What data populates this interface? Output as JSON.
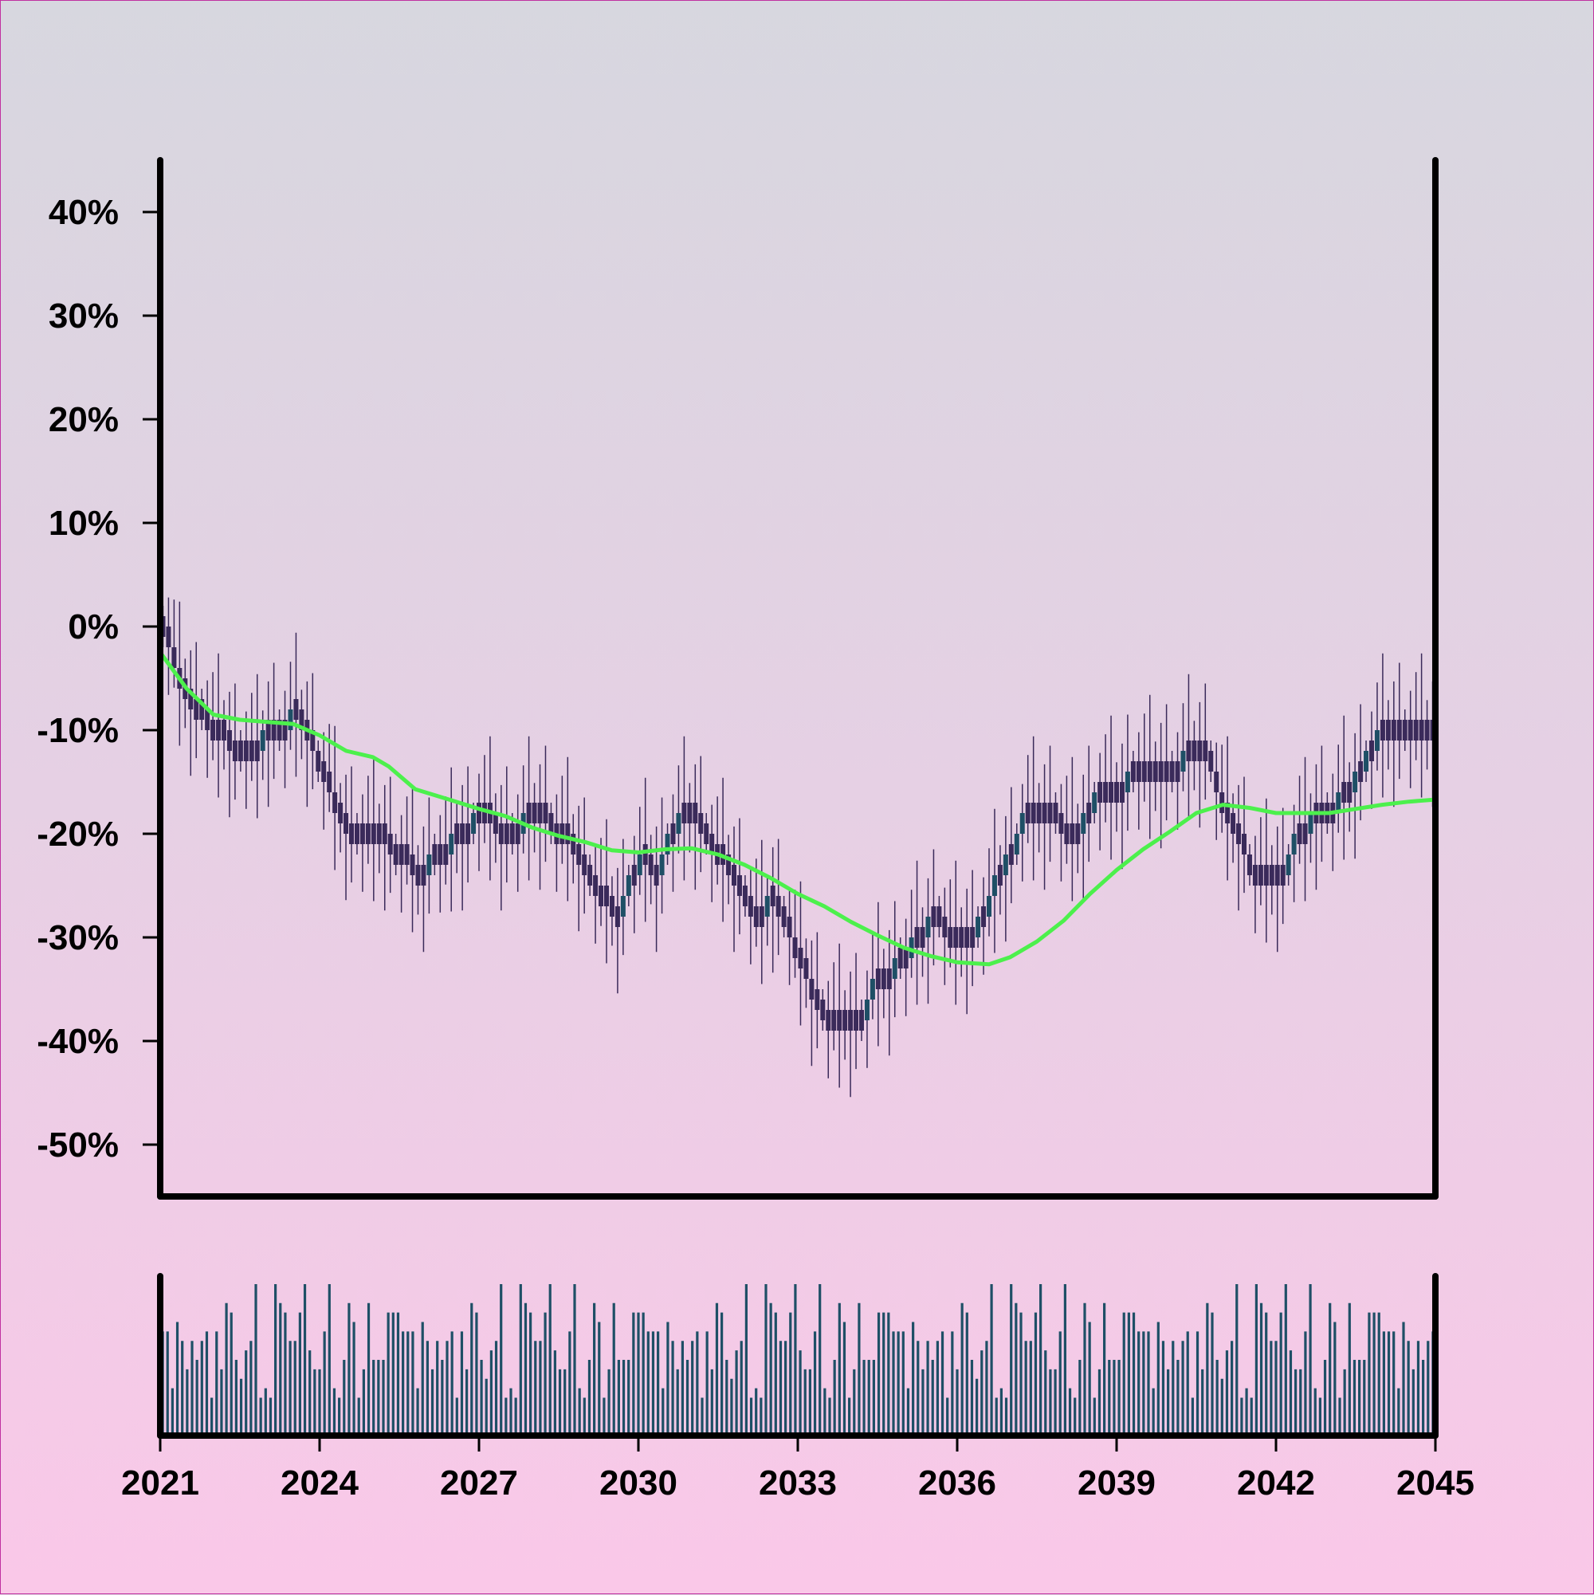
{
  "chart_data": {
    "type": "candlestick",
    "title": "",
    "xlabel": "",
    "ylabel": "",
    "x_ticks": [
      "2021",
      "2024",
      "2027",
      "2030",
      "2033",
      "2036",
      "2039",
      "2042",
      "2045"
    ],
    "x_range": [
      2021,
      2045
    ],
    "y_ticks": [
      "40%",
      "30%",
      "20%",
      "10%",
      "0%",
      "-10%",
      "-20%",
      "-30%",
      "-40%",
      "-50%"
    ],
    "y_tick_values": [
      40,
      30,
      20,
      10,
      0,
      -10,
      -20,
      -30,
      -40,
      -50
    ],
    "ylim": [
      -55,
      45
    ],
    "grid": false,
    "price_path_control": [
      [
        2021.0,
        0
      ],
      [
        2021.3,
        -5
      ],
      [
        2021.7,
        -8
      ],
      [
        2022.0,
        -10
      ],
      [
        2022.4,
        -12
      ],
      [
        2022.6,
        -13
      ],
      [
        2023.0,
        -10
      ],
      [
        2023.3,
        -10
      ],
      [
        2023.5,
        -7
      ],
      [
        2023.8,
        -11
      ],
      [
        2024.2,
        -16
      ],
      [
        2024.5,
        -20
      ],
      [
        2025.0,
        -20
      ],
      [
        2025.5,
        -22
      ],
      [
        2025.8,
        -24
      ],
      [
        2026.2,
        -22
      ],
      [
        2026.7,
        -20
      ],
      [
        2027.0,
        -18
      ],
      [
        2027.5,
        -20
      ],
      [
        2028.0,
        -18
      ],
      [
        2028.6,
        -20
      ],
      [
        2029.1,
        -25
      ],
      [
        2029.6,
        -28
      ],
      [
        2030.0,
        -22
      ],
      [
        2030.3,
        -24
      ],
      [
        2030.6,
        -20
      ],
      [
        2030.8,
        -17
      ],
      [
        2031.1,
        -19
      ],
      [
        2031.5,
        -22
      ],
      [
        2031.9,
        -25
      ],
      [
        2032.2,
        -29
      ],
      [
        2032.5,
        -26
      ],
      [
        2032.9,
        -31
      ],
      [
        2033.3,
        -36
      ],
      [
        2033.7,
        -39
      ],
      [
        2034.1,
        -39
      ],
      [
        2034.4,
        -35
      ],
      [
        2034.9,
        -32
      ],
      [
        2035.2,
        -30
      ],
      [
        2035.6,
        -28
      ],
      [
        2035.9,
        -30
      ],
      [
        2036.3,
        -29
      ],
      [
        2036.8,
        -24
      ],
      [
        2037.2,
        -19
      ],
      [
        2037.7,
        -18
      ],
      [
        2038.2,
        -20
      ],
      [
        2038.7,
        -16
      ],
      [
        2039.2,
        -15
      ],
      [
        2039.6,
        -15
      ],
      [
        2040.0,
        -14
      ],
      [
        2040.4,
        -12
      ],
      [
        2040.7,
        -13
      ],
      [
        2041.0,
        -18
      ],
      [
        2041.5,
        -23
      ],
      [
        2042.0,
        -25
      ],
      [
        2042.4,
        -20
      ],
      [
        2042.9,
        -18
      ],
      [
        2043.3,
        -16
      ],
      [
        2043.7,
        -12
      ],
      [
        2044.0,
        -10
      ],
      [
        2044.4,
        -11
      ],
      [
        2044.8,
        -11
      ],
      [
        2045.0,
        -10
      ]
    ],
    "series": [
      {
        "type": "line",
        "values": [
          [
            2021.0,
            -2.5
          ],
          [
            2021.5,
            -6
          ],
          [
            2022.0,
            -8.5
          ],
          [
            2022.5,
            -9
          ],
          [
            2023.0,
            -9.2
          ],
          [
            2023.5,
            -9.4
          ],
          [
            2024.0,
            -10.5
          ],
          [
            2024.5,
            -12
          ],
          [
            2025.0,
            -12.6
          ],
          [
            2025.3,
            -13.5
          ],
          [
            2025.8,
            -15.7
          ],
          [
            2026.5,
            -16.8
          ],
          [
            2027.0,
            -17.6
          ],
          [
            2027.5,
            -18.3
          ],
          [
            2028.0,
            -19.4
          ],
          [
            2028.5,
            -20.2
          ],
          [
            2029.0,
            -20.8
          ],
          [
            2029.5,
            -21.6
          ],
          [
            2030.0,
            -21.8
          ],
          [
            2030.5,
            -21.5
          ],
          [
            2031.0,
            -21.4
          ],
          [
            2031.5,
            -22
          ],
          [
            2032.0,
            -23
          ],
          [
            2032.5,
            -24.3
          ],
          [
            2033.0,
            -25.8
          ],
          [
            2033.5,
            -27
          ],
          [
            2034.0,
            -28.5
          ],
          [
            2034.5,
            -29.8
          ],
          [
            2035.0,
            -31
          ],
          [
            2035.5,
            -31.8
          ],
          [
            2036.0,
            -32.4
          ],
          [
            2036.6,
            -32.6
          ],
          [
            2037.0,
            -31.9
          ],
          [
            2037.5,
            -30.4
          ],
          [
            2038.0,
            -28.4
          ],
          [
            2038.5,
            -25.8
          ],
          [
            2039.0,
            -23.5
          ],
          [
            2039.5,
            -21.5
          ],
          [
            2040.0,
            -19.8
          ],
          [
            2040.5,
            -18
          ],
          [
            2041.0,
            -17.2
          ],
          [
            2041.5,
            -17.5
          ],
          [
            2042.0,
            -18
          ],
          [
            2042.5,
            -18
          ],
          [
            2043.0,
            -18
          ],
          [
            2043.5,
            -17.6
          ],
          [
            2044.0,
            -17.2
          ],
          [
            2044.5,
            -16.9
          ],
          [
            2045.0,
            -16.7
          ]
        ]
      }
    ],
    "volume_levels": [
      4,
      9,
      6,
      11,
      5,
      3,
      12,
      2,
      8,
      7,
      10,
      4,
      6,
      9,
      13,
      5,
      7,
      3,
      8,
      11,
      6,
      10,
      7,
      4,
      9,
      12,
      8,
      5,
      13,
      7,
      10,
      6,
      11,
      4,
      8,
      9,
      12,
      5,
      7,
      10,
      6,
      13,
      8,
      4,
      11,
      9,
      7,
      12,
      5,
      10
    ],
    "colors": {
      "candle_up": "#1e4f66",
      "candle_down": "#3a2a5a",
      "moving_average": "#4cf04c",
      "volume_bar": "#1e4f66",
      "axis": "#000000"
    }
  }
}
